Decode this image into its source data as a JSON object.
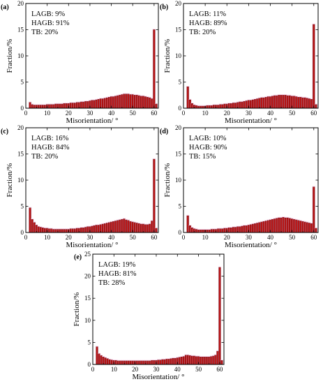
{
  "chart_data": [
    {
      "type": "bar",
      "panel_label": "(a)",
      "xlabel": "Misorientation/ °",
      "ylabel": "Fraction/%",
      "xlim": [
        0,
        62
      ],
      "ylim": [
        0,
        20
      ],
      "xticks": [
        0,
        10,
        20,
        30,
        40,
        50,
        60
      ],
      "yticks": [
        0,
        5,
        10,
        15,
        20
      ],
      "annotations": [
        "LAGB: 9%",
        "HAGB: 91%",
        "TB: 20%"
      ],
      "x": [
        2,
        3,
        4,
        5,
        6,
        7,
        8,
        9,
        10,
        11,
        12,
        13,
        14,
        15,
        16,
        17,
        18,
        19,
        20,
        21,
        22,
        23,
        24,
        25,
        26,
        27,
        28,
        29,
        30,
        31,
        32,
        33,
        34,
        35,
        36,
        37,
        38,
        39,
        40,
        41,
        42,
        43,
        44,
        45,
        46,
        47,
        48,
        49,
        50,
        51,
        52,
        53,
        54,
        55,
        56,
        57,
        58,
        59,
        60,
        61
      ],
      "values": [
        1.1,
        0.7,
        0.6,
        0.6,
        0.6,
        0.6,
        0.6,
        0.6,
        0.7,
        0.7,
        0.7,
        0.7,
        0.8,
        0.8,
        0.8,
        0.8,
        0.9,
        0.9,
        0.9,
        1.0,
        1.0,
        1.0,
        1.1,
        1.1,
        1.2,
        1.2,
        1.3,
        1.3,
        1.4,
        1.5,
        1.5,
        1.6,
        1.7,
        1.8,
        1.8,
        1.9,
        2.0,
        2.1,
        2.2,
        2.2,
        2.3,
        2.4,
        2.5,
        2.6,
        2.7,
        2.7,
        2.7,
        2.6,
        2.6,
        2.5,
        2.5,
        2.4,
        2.3,
        2.3,
        2.2,
        2.1,
        2.0,
        1.8,
        15.0,
        0.8
      ]
    },
    {
      "type": "bar",
      "panel_label": "(b)",
      "xlabel": "Misorientation/ °",
      "ylabel": "Fraction/%",
      "xlim": [
        0,
        62
      ],
      "ylim": [
        0,
        20
      ],
      "xticks": [
        0,
        10,
        20,
        30,
        40,
        50,
        60
      ],
      "yticks": [
        0,
        5,
        10,
        15,
        20
      ],
      "annotations": [
        "LAGB: 11%",
        "HAGB: 89%",
        "TB: 20%"
      ],
      "x": [
        2,
        3,
        4,
        5,
        6,
        7,
        8,
        9,
        10,
        11,
        12,
        13,
        14,
        15,
        16,
        17,
        18,
        19,
        20,
        21,
        22,
        23,
        24,
        25,
        26,
        27,
        28,
        29,
        30,
        31,
        32,
        33,
        34,
        35,
        36,
        37,
        38,
        39,
        40,
        41,
        42,
        43,
        44,
        45,
        46,
        47,
        48,
        49,
        50,
        51,
        52,
        53,
        54,
        55,
        56,
        57,
        58,
        59,
        60,
        61
      ],
      "values": [
        4.1,
        1.6,
        0.9,
        0.6,
        0.5,
        0.4,
        0.4,
        0.4,
        0.4,
        0.5,
        0.5,
        0.5,
        0.6,
        0.6,
        0.6,
        0.7,
        0.7,
        0.8,
        0.8,
        0.9,
        0.9,
        1.0,
        1.0,
        1.1,
        1.2,
        1.2,
        1.3,
        1.4,
        1.5,
        1.5,
        1.6,
        1.7,
        1.8,
        1.9,
        2.0,
        2.0,
        2.1,
        2.2,
        2.2,
        2.3,
        2.4,
        2.4,
        2.5,
        2.5,
        2.5,
        2.5,
        2.4,
        2.4,
        2.3,
        2.3,
        2.2,
        2.1,
        2.1,
        2.0,
        2.0,
        1.9,
        1.8,
        1.7,
        16.0,
        0.7
      ]
    },
    {
      "type": "bar",
      "panel_label": "(c)",
      "xlabel": "Misorientation/ °",
      "ylabel": "Fraction/%",
      "xlim": [
        0,
        62
      ],
      "ylim": [
        0,
        20
      ],
      "xticks": [
        0,
        10,
        20,
        30,
        40,
        50,
        60
      ],
      "yticks": [
        0,
        5,
        10,
        15,
        20
      ],
      "annotations": [
        "LAGB: 16%",
        "HAGB: 84%",
        "TB: 20%"
      ],
      "x": [
        2,
        3,
        4,
        5,
        6,
        7,
        8,
        9,
        10,
        11,
        12,
        13,
        14,
        15,
        16,
        17,
        18,
        19,
        20,
        21,
        22,
        23,
        24,
        25,
        26,
        27,
        28,
        29,
        30,
        31,
        32,
        33,
        34,
        35,
        36,
        37,
        38,
        39,
        40,
        41,
        42,
        43,
        44,
        45,
        46,
        47,
        48,
        49,
        50,
        51,
        52,
        53,
        54,
        55,
        56,
        57,
        58,
        59,
        60,
        61
      ],
      "values": [
        4.7,
        2.5,
        1.9,
        1.4,
        1.1,
        1.0,
        0.9,
        0.8,
        0.8,
        0.7,
        0.7,
        0.6,
        0.6,
        0.6,
        0.6,
        0.6,
        0.6,
        0.6,
        0.6,
        0.7,
        0.7,
        0.7,
        0.8,
        0.8,
        0.9,
        0.9,
        1.0,
        1.1,
        1.1,
        1.2,
        1.3,
        1.4,
        1.4,
        1.5,
        1.6,
        1.7,
        1.8,
        1.9,
        2.0,
        2.1,
        2.2,
        2.3,
        2.4,
        2.5,
        2.6,
        2.4,
        2.3,
        2.1,
        2.0,
        1.9,
        1.8,
        1.7,
        1.6,
        1.6,
        1.5,
        1.5,
        1.6,
        2.2,
        14.0,
        0.8
      ]
    },
    {
      "type": "bar",
      "panel_label": "(d)",
      "xlabel": "Misorientation/ °",
      "ylabel": "Fraction/%",
      "xlim": [
        0,
        62
      ],
      "ylim": [
        0,
        20
      ],
      "xticks": [
        0,
        10,
        20,
        30,
        40,
        50,
        60
      ],
      "yticks": [
        0,
        5,
        10,
        15,
        20
      ],
      "annotations": [
        "LAGB: 10%",
        "HAGB: 90%",
        "TB: 15%"
      ],
      "x": [
        2,
        3,
        4,
        5,
        6,
        7,
        8,
        9,
        10,
        11,
        12,
        13,
        14,
        15,
        16,
        17,
        18,
        19,
        20,
        21,
        22,
        23,
        24,
        25,
        26,
        27,
        28,
        29,
        30,
        31,
        32,
        33,
        34,
        35,
        36,
        37,
        38,
        39,
        40,
        41,
        42,
        43,
        44,
        45,
        46,
        47,
        48,
        49,
        50,
        51,
        52,
        53,
        54,
        55,
        56,
        57,
        58,
        59,
        60,
        61
      ],
      "values": [
        3.2,
        1.3,
        0.9,
        0.7,
        0.6,
        0.5,
        0.5,
        0.5,
        0.5,
        0.5,
        0.5,
        0.6,
        0.6,
        0.6,
        0.7,
        0.7,
        0.7,
        0.8,
        0.8,
        0.9,
        0.9,
        1.0,
        1.0,
        1.1,
        1.1,
        1.2,
        1.3,
        1.3,
        1.4,
        1.5,
        1.6,
        1.7,
        1.8,
        1.9,
        2.0,
        2.1,
        2.2,
        2.3,
        2.4,
        2.5,
        2.6,
        2.7,
        2.8,
        2.8,
        2.9,
        2.8,
        2.8,
        2.7,
        2.6,
        2.5,
        2.4,
        2.3,
        2.2,
        2.1,
        2.0,
        1.9,
        1.8,
        1.7,
        8.7,
        0.8
      ]
    },
    {
      "type": "bar",
      "panel_label": "(e)",
      "xlabel": "Misorientation/ °",
      "ylabel": "Fraction/%",
      "xlim": [
        0,
        62
      ],
      "ylim": [
        0,
        25
      ],
      "xticks": [
        0,
        10,
        20,
        30,
        40,
        50,
        60
      ],
      "yticks": [
        0,
        5,
        10,
        15,
        20,
        25
      ],
      "annotations": [
        "LAGB: 19%",
        "HAGB: 81%",
        "TB: 28%"
      ],
      "x": [
        2,
        3,
        4,
        5,
        6,
        7,
        8,
        9,
        10,
        11,
        12,
        13,
        14,
        15,
        16,
        17,
        18,
        19,
        20,
        21,
        22,
        23,
        24,
        25,
        26,
        27,
        28,
        29,
        30,
        31,
        32,
        33,
        34,
        35,
        36,
        37,
        38,
        39,
        40,
        41,
        42,
        43,
        44,
        45,
        46,
        47,
        48,
        49,
        50,
        51,
        52,
        53,
        54,
        55,
        56,
        57,
        58,
        59,
        60,
        61
      ],
      "values": [
        4.0,
        2.4,
        2.0,
        1.7,
        1.5,
        1.3,
        1.1,
        1.0,
        0.9,
        0.9,
        0.8,
        0.8,
        0.8,
        0.8,
        0.8,
        0.8,
        0.8,
        0.8,
        0.8,
        0.8,
        0.8,
        0.8,
        0.8,
        0.8,
        0.8,
        0.8,
        0.9,
        0.9,
        0.9,
        1.0,
        1.0,
        1.1,
        1.1,
        1.2,
        1.2,
        1.3,
        1.4,
        1.4,
        1.5,
        1.6,
        1.7,
        1.8,
        2.1,
        2.1,
        2.0,
        1.9,
        1.9,
        1.8,
        1.8,
        1.7,
        1.7,
        1.7,
        1.7,
        1.7,
        1.8,
        1.9,
        2.1,
        3.0,
        22.0,
        0.9
      ]
    }
  ],
  "style": {
    "bar_color": "#b81414",
    "bar_edge": "#5a0000",
    "halo_color": "#f2b8dc",
    "axis_color": "#000000"
  }
}
